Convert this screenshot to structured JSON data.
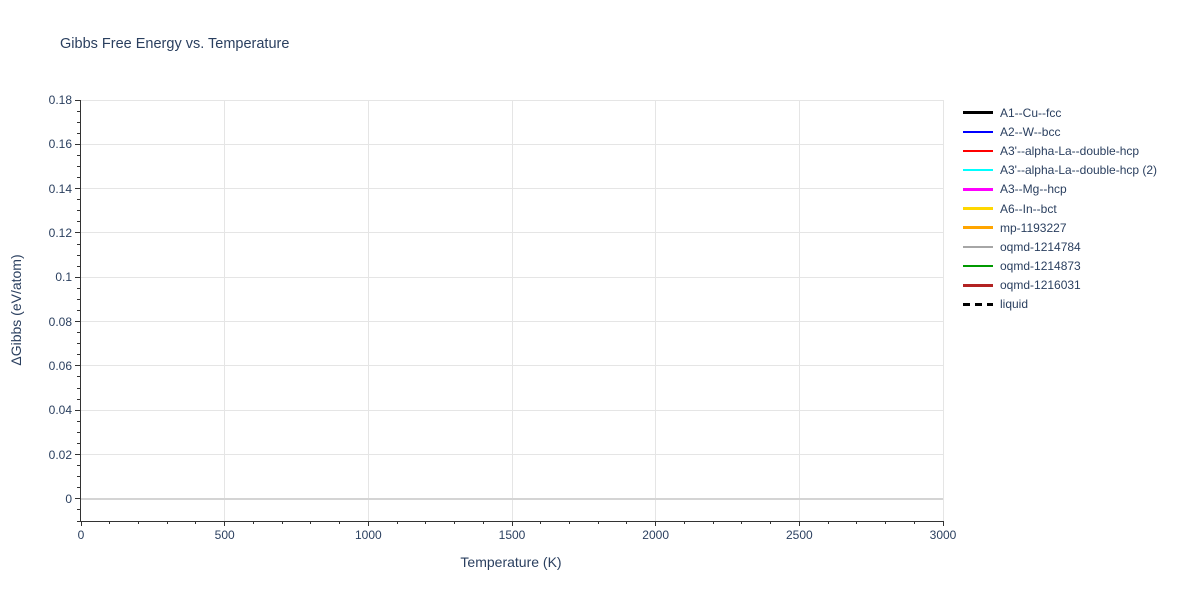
{
  "chart": {
    "title": "Gibbs Free Energy vs. Temperature",
    "x_axis": {
      "title": "Temperature (K)",
      "major_ticks": [
        {
          "value": 0,
          "label": "0"
        },
        {
          "value": 500,
          "label": "500"
        },
        {
          "value": 1000,
          "label": "1000"
        },
        {
          "value": 1500,
          "label": "1500"
        },
        {
          "value": 2000,
          "label": "2000"
        },
        {
          "value": 2500,
          "label": "2500"
        },
        {
          "value": 3000,
          "label": "3000"
        }
      ],
      "minor_tick_step": 100
    },
    "y_axis": {
      "title": "ΔGibbs (eV/atom)",
      "major_ticks": [
        {
          "value": 0,
          "label": "0"
        },
        {
          "value": 0.02,
          "label": "0.02"
        },
        {
          "value": 0.04,
          "label": "0.04"
        },
        {
          "value": 0.06,
          "label": "0.06"
        },
        {
          "value": 0.08,
          "label": "0.08"
        },
        {
          "value": 0.1,
          "label": "0.1"
        },
        {
          "value": 0.12,
          "label": "0.12"
        },
        {
          "value": 0.14,
          "label": "0.14"
        },
        {
          "value": 0.16,
          "label": "0.16"
        },
        {
          "value": 0.18,
          "label": "0.18"
        }
      ],
      "minor_tick_step": 0.005
    },
    "colors": {
      "text": "#2a3f5f",
      "gridline": "#e5e5e5",
      "zeroline": "#d4d4d4",
      "axis_line": "#333333",
      "background": "#ffffff"
    }
  },
  "legend": {
    "items": [
      {
        "label": "A1--Cu--fcc",
        "color": "#000000",
        "dash": "solid"
      },
      {
        "label": "A2--W--bcc",
        "color": "#0000ff",
        "dash": "solid"
      },
      {
        "label": "A3'--alpha-La--double-hcp",
        "color": "#ff0000",
        "dash": "solid"
      },
      {
        "label": "A3'--alpha-La--double-hcp (2)",
        "color": "#00ffff",
        "dash": "solid"
      },
      {
        "label": "A3--Mg--hcp",
        "color": "#ff00ff",
        "dash": "solid"
      },
      {
        "label": "A6--In--bct",
        "color": "#ffd700",
        "dash": "solid"
      },
      {
        "label": "mp-1193227",
        "color": "#ffa500",
        "dash": "solid"
      },
      {
        "label": "oqmd-1214784",
        "color": "#a6a6a6",
        "dash": "solid"
      },
      {
        "label": "oqmd-1214873",
        "color": "#009900",
        "dash": "solid"
      },
      {
        "label": "oqmd-1216031",
        "color": "#b22222",
        "dash": "solid"
      },
      {
        "label": "liquid",
        "color": "#000000",
        "dash": "dash"
      }
    ]
  },
  "chart_data": {
    "type": "line",
    "title": "Gibbs Free Energy vs. Temperature",
    "xlabel": "Temperature (K)",
    "ylabel": "ΔGibbs (eV/atom)",
    "xlim": [
      0,
      3000
    ],
    "ylim": [
      -0.01,
      0.18
    ],
    "grid": true,
    "legend_position": "right",
    "zero_line": true,
    "series": [
      {
        "name": "A1--Cu--fcc",
        "color": "#000000",
        "dash": "solid",
        "x": [],
        "y": []
      },
      {
        "name": "A2--W--bcc",
        "color": "#0000ff",
        "dash": "solid",
        "x": [],
        "y": []
      },
      {
        "name": "A3'--alpha-La--double-hcp",
        "color": "#ff0000",
        "dash": "solid",
        "x": [],
        "y": []
      },
      {
        "name": "A3'--alpha-La--double-hcp (2)",
        "color": "#00ffff",
        "dash": "solid",
        "x": [],
        "y": []
      },
      {
        "name": "A3--Mg--hcp",
        "color": "#ff00ff",
        "dash": "solid",
        "x": [],
        "y": []
      },
      {
        "name": "A6--In--bct",
        "color": "#ffd700",
        "dash": "solid",
        "x": [],
        "y": []
      },
      {
        "name": "mp-1193227",
        "color": "#ffa500",
        "dash": "solid",
        "x": [],
        "y": []
      },
      {
        "name": "oqmd-1214784",
        "color": "#a6a6a6",
        "dash": "solid",
        "x": [],
        "y": []
      },
      {
        "name": "oqmd-1214873",
        "color": "#009900",
        "dash": "solid",
        "x": [],
        "y": []
      },
      {
        "name": "oqmd-1216031",
        "color": "#b22222",
        "dash": "solid",
        "x": [],
        "y": []
      },
      {
        "name": "liquid",
        "color": "#000000",
        "dash": "dash",
        "x": [],
        "y": []
      }
    ]
  }
}
